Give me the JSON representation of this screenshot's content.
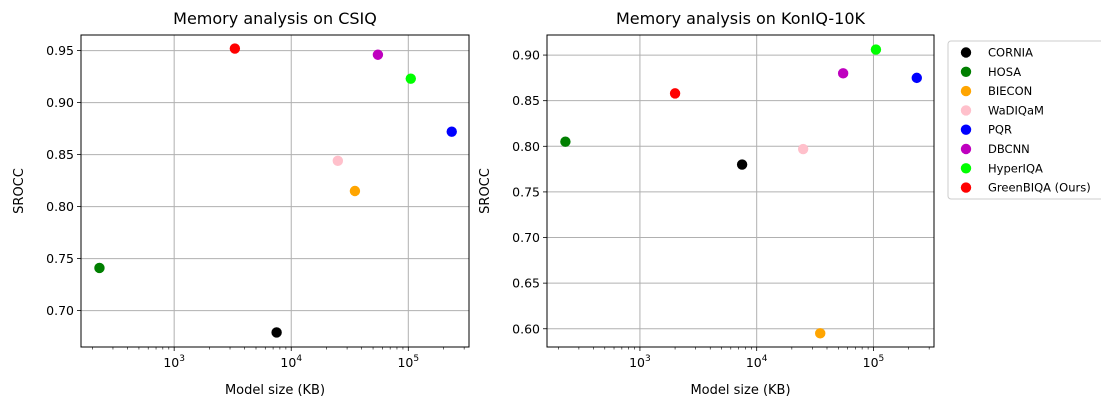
{
  "legend": {
    "entries": [
      {
        "label": "CORNIA",
        "color": "#000000"
      },
      {
        "label": "HOSA",
        "color": "#007f00"
      },
      {
        "label": "BIECON",
        "color": "#ffa500"
      },
      {
        "label": "WaDIQaM",
        "color": "#ffc0cb"
      },
      {
        "label": "PQR",
        "color": "#0000ff"
      },
      {
        "label": "DBCNN",
        "color": "#bf00bf"
      },
      {
        "label": "HyperIQA",
        "color": "#00ff00"
      },
      {
        "label": "GreenBIQA (Ours)",
        "color": "#ff0000"
      }
    ],
    "placement": "right"
  },
  "chart_data": [
    {
      "type": "scatter",
      "title": "Memory analysis on CSIQ",
      "xlabel": "Model size (KB)",
      "ylabel": "SROCC",
      "xscale": "log",
      "xlim": [
        160,
        330000
      ],
      "ylim": [
        0.665,
        0.965
      ],
      "grid": true,
      "xticks": [
        {
          "value": 1000,
          "base": "10",
          "exp": "3"
        },
        {
          "value": 10000,
          "base": "10",
          "exp": "4"
        },
        {
          "value": 100000,
          "base": "10",
          "exp": "5"
        }
      ],
      "yticks": [
        {
          "value": 0.7,
          "label": "0.70"
        },
        {
          "value": 0.75,
          "label": "0.75"
        },
        {
          "value": 0.8,
          "label": "0.80"
        },
        {
          "value": 0.85,
          "label": "0.85"
        },
        {
          "value": 0.9,
          "label": "0.90"
        },
        {
          "value": 0.95,
          "label": "0.95"
        }
      ],
      "points": [
        {
          "series": "CORNIA",
          "x": 7500,
          "y": 0.679
        },
        {
          "series": "HOSA",
          "x": 230,
          "y": 0.741
        },
        {
          "series": "BIECON",
          "x": 35000,
          "y": 0.815
        },
        {
          "series": "WaDIQaM",
          "x": 25000,
          "y": 0.844
        },
        {
          "series": "PQR",
          "x": 235000,
          "y": 0.872
        },
        {
          "series": "DBCNN",
          "x": 55000,
          "y": 0.946
        },
        {
          "series": "HyperIQA",
          "x": 105000,
          "y": 0.923
        },
        {
          "series": "GreenBIQA (Ours)",
          "x": 3300,
          "y": 0.952
        }
      ]
    },
    {
      "type": "scatter",
      "title": "Memory analysis on KonIQ-10K",
      "xlabel": "Model size (KB)",
      "ylabel": "SROCC",
      "xscale": "log",
      "xlim": [
        160,
        330000
      ],
      "ylim": [
        0.58,
        0.922
      ],
      "grid": true,
      "xticks": [
        {
          "value": 1000,
          "base": "10",
          "exp": "3"
        },
        {
          "value": 10000,
          "base": "10",
          "exp": "4"
        },
        {
          "value": 100000,
          "base": "10",
          "exp": "5"
        }
      ],
      "yticks": [
        {
          "value": 0.6,
          "label": "0.60"
        },
        {
          "value": 0.65,
          "label": "0.65"
        },
        {
          "value": 0.7,
          "label": "0.70"
        },
        {
          "value": 0.75,
          "label": "0.75"
        },
        {
          "value": 0.8,
          "label": "0.80"
        },
        {
          "value": 0.85,
          "label": "0.85"
        },
        {
          "value": 0.9,
          "label": "0.90"
        }
      ],
      "points": [
        {
          "series": "CORNIA",
          "x": 7500,
          "y": 0.78
        },
        {
          "series": "HOSA",
          "x": 230,
          "y": 0.805
        },
        {
          "series": "BIECON",
          "x": 35000,
          "y": 0.595
        },
        {
          "series": "WaDIQaM",
          "x": 25000,
          "y": 0.797
        },
        {
          "series": "PQR",
          "x": 235000,
          "y": 0.875
        },
        {
          "series": "DBCNN",
          "x": 55000,
          "y": 0.88
        },
        {
          "series": "HyperIQA",
          "x": 105000,
          "y": 0.906
        },
        {
          "series": "GreenBIQA (Ours)",
          "x": 2000,
          "y": 0.858
        }
      ]
    }
  ]
}
